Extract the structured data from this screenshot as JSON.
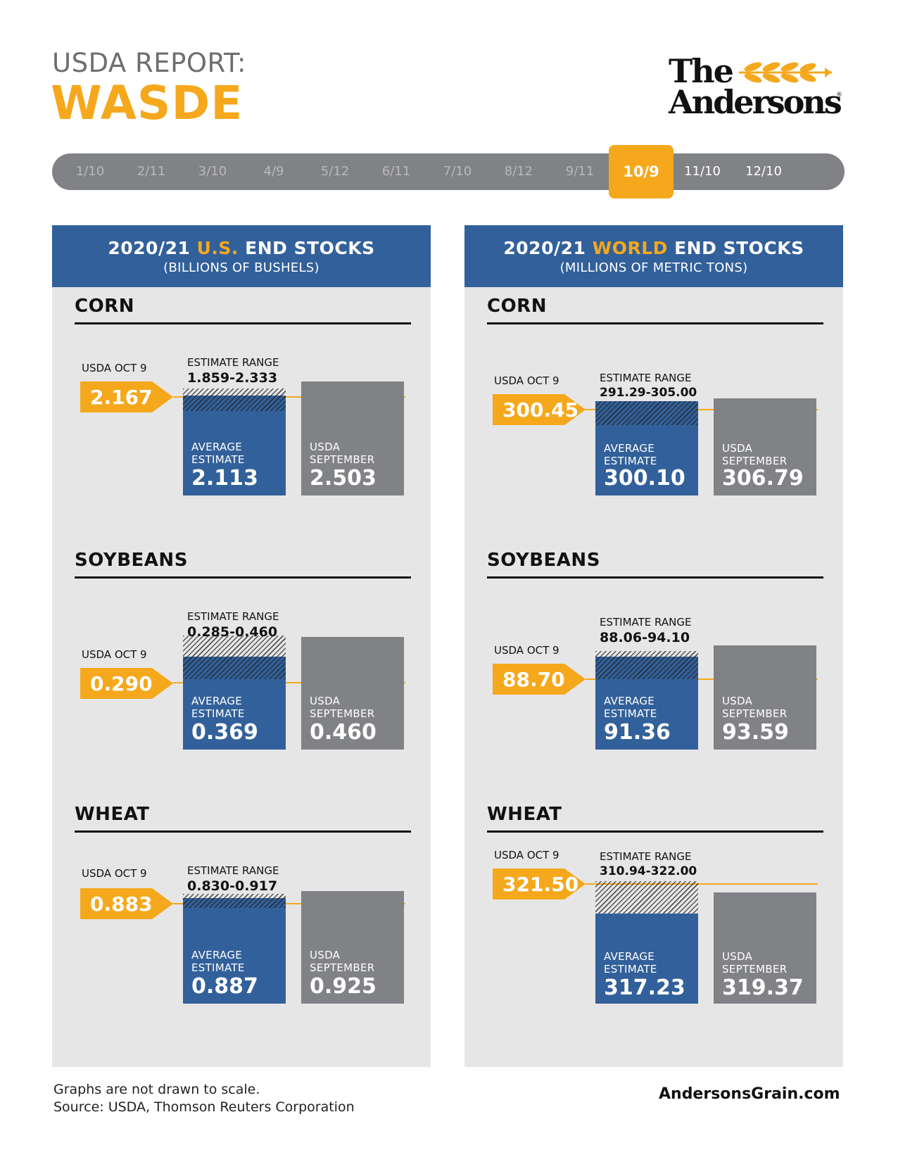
{
  "header": {
    "kicker": "USDA REPORT:",
    "title": "WASDE"
  },
  "logo": {
    "line1": "The",
    "line2": "Andersons",
    "reg": "®"
  },
  "timeline": [
    "1/10",
    "2/11",
    "3/10",
    "4/9",
    "5/12",
    "6/11",
    "7/10",
    "8/12",
    "9/11",
    "10/9",
    "11/10",
    "12/10"
  ],
  "timeline_active": "10/9",
  "colors": {
    "gold": "#f5a81c",
    "blue": "#32609a",
    "gray": "#818285",
    "panel": "#e6e6e7"
  },
  "panels": {
    "left": {
      "title_pre": "2020/21",
      "title_hl": "U.S.",
      "title_post": "END STOCKS",
      "subtitle": "(BILLIONS OF BUSHELS)",
      "sections": [
        {
          "commodity": "CORN",
          "oct_label": "USDA OCT 9",
          "oct_value": "2.167",
          "range_label": "ESTIMATE RANGE",
          "range_value": "1.859-2.333",
          "avg_cap1": "AVERAGE",
          "avg_cap2": "ESTIMATE",
          "avg_value": "2.113",
          "sep_cap1": "USDA",
          "sep_cap2": "SEPTEMBER",
          "sep_value": "2.503"
        },
        {
          "commodity": "SOYBEANS",
          "oct_label": "USDA OCT 9",
          "oct_value": "0.290",
          "range_label": "ESTIMATE RANGE",
          "range_value": "0.285-0.460",
          "avg_cap1": "AVERAGE",
          "avg_cap2": "ESTIMATE",
          "avg_value": "0.369",
          "sep_cap1": "USDA",
          "sep_cap2": "SEPTEMBER",
          "sep_value": "0.460"
        },
        {
          "commodity": "WHEAT",
          "oct_label": "USDA OCT 9",
          "oct_value": "0.883",
          "range_label": "ESTIMATE RANGE",
          "range_value": "0.830-0.917",
          "avg_cap1": "AVERAGE",
          "avg_cap2": "ESTIMATE",
          "avg_value": "0.887",
          "sep_cap1": "USDA",
          "sep_cap2": "SEPTEMBER",
          "sep_value": "0.925"
        }
      ]
    },
    "right": {
      "title_pre": "2020/21",
      "title_hl": "WORLD",
      "title_post": "END STOCKS",
      "subtitle": "(MILLIONS OF METRIC TONS)",
      "sections": [
        {
          "commodity": "CORN",
          "oct_label": "USDA OCT 9",
          "oct_value": "300.45",
          "range_label": "ESTIMATE RANGE",
          "range_value": "291.29-305.00",
          "avg_cap1": "AVERAGE",
          "avg_cap2": "ESTIMATE",
          "avg_value": "300.10",
          "sep_cap1": "USDA",
          "sep_cap2": "SEPTEMBER",
          "sep_value": "306.79"
        },
        {
          "commodity": "SOYBEANS",
          "oct_label": "USDA OCT 9",
          "oct_value": "88.70",
          "range_label": "ESTIMATE RANGE",
          "range_value": "88.06-94.10",
          "avg_cap1": "AVERAGE",
          "avg_cap2": "ESTIMATE",
          "avg_value": "91.36",
          "sep_cap1": "USDA",
          "sep_cap2": "SEPTEMBER",
          "sep_value": "93.59"
        },
        {
          "commodity": "WHEAT",
          "oct_label": "USDA OCT 9",
          "oct_value": "321.50",
          "range_label": "ESTIMATE RANGE",
          "range_value": "310.94-322.00",
          "avg_cap1": "AVERAGE",
          "avg_cap2": "ESTIMATE",
          "avg_value": "317.23",
          "sep_cap1": "USDA",
          "sep_cap2": "SEPTEMBER",
          "sep_value": "319.37"
        }
      ]
    }
  },
  "chart_data": [
    {
      "type": "bar",
      "title": "2020/21 U.S. END STOCKS",
      "subtitle": "(BILLIONS OF BUSHELS)",
      "commodity": "CORN",
      "categories": [
        "AVERAGE ESTIMATE",
        "USDA SEPTEMBER"
      ],
      "values": [
        2.113,
        2.503
      ],
      "usda_oct_9": 2.167,
      "estimate_range": [
        1.859,
        2.333
      ]
    },
    {
      "type": "bar",
      "title": "2020/21 U.S. END STOCKS",
      "subtitle": "(BILLIONS OF BUSHELS)",
      "commodity": "SOYBEANS",
      "categories": [
        "AVERAGE ESTIMATE",
        "USDA SEPTEMBER"
      ],
      "values": [
        0.369,
        0.46
      ],
      "usda_oct_9": 0.29,
      "estimate_range": [
        0.285,
        0.46
      ]
    },
    {
      "type": "bar",
      "title": "2020/21 U.S. END STOCKS",
      "subtitle": "(BILLIONS OF BUSHELS)",
      "commodity": "WHEAT",
      "categories": [
        "AVERAGE ESTIMATE",
        "USDA SEPTEMBER"
      ],
      "values": [
        0.887,
        0.925
      ],
      "usda_oct_9": 0.883,
      "estimate_range": [
        0.83,
        0.917
      ]
    },
    {
      "type": "bar",
      "title": "2020/21 WORLD END STOCKS",
      "subtitle": "(MILLIONS OF METRIC TONS)",
      "commodity": "CORN",
      "categories": [
        "AVERAGE ESTIMATE",
        "USDA SEPTEMBER"
      ],
      "values": [
        300.1,
        306.79
      ],
      "usda_oct_9": 300.45,
      "estimate_range": [
        291.29,
        305.0
      ]
    },
    {
      "type": "bar",
      "title": "2020/21 WORLD END STOCKS",
      "subtitle": "(MILLIONS OF METRIC TONS)",
      "commodity": "SOYBEANS",
      "categories": [
        "AVERAGE ESTIMATE",
        "USDA SEPTEMBER"
      ],
      "values": [
        91.36,
        93.59
      ],
      "usda_oct_9": 88.7,
      "estimate_range": [
        88.06,
        94.1
      ]
    },
    {
      "type": "bar",
      "title": "2020/21 WORLD END STOCKS",
      "subtitle": "(MILLIONS OF METRIC TONS)",
      "commodity": "WHEAT",
      "categories": [
        "AVERAGE ESTIMATE",
        "USDA SEPTEMBER"
      ],
      "values": [
        317.23,
        319.37
      ],
      "usda_oct_9": 321.5,
      "estimate_range": [
        310.94,
        322.0
      ]
    }
  ],
  "footer": {
    "note1": "Graphs are not drawn to scale.",
    "note2": "Source: USDA, Thomson Reuters Corporation",
    "url": "AndersonsGrain.com"
  }
}
